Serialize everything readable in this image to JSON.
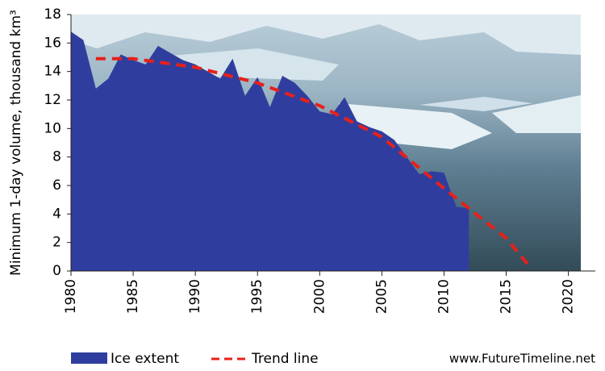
{
  "chart_data": {
    "type": "area",
    "y_label": "Minimum 1-day volume, thousand km³",
    "source": "www.FutureTimeline.net",
    "xlim": [
      1980,
      2021
    ],
    "xticks": [
      1980,
      1985,
      1990,
      1995,
      2000,
      2005,
      2010,
      2015,
      2020
    ],
    "ylim": [
      0,
      18
    ],
    "yticks": [
      0,
      2,
      4,
      6,
      8,
      10,
      12,
      14,
      16,
      18
    ],
    "series": [
      {
        "name": "Ice extent",
        "type": "area",
        "color": "#2f3e9e",
        "x": [
          1980,
          1981,
          1982,
          1983,
          1984,
          1985,
          1986,
          1987,
          1988,
          1989,
          1990,
          1991,
          1992,
          1993,
          1994,
          1995,
          1996,
          1997,
          1998,
          1999,
          2000,
          2001,
          2002,
          2003,
          2004,
          2005,
          2006,
          2007,
          2008,
          2009,
          2010,
          2011,
          2012
        ],
        "values": [
          16.8,
          16.2,
          12.8,
          13.5,
          15.2,
          14.8,
          14.5,
          15.8,
          15.3,
          14.8,
          14.5,
          14.0,
          13.5,
          14.9,
          12.3,
          13.6,
          11.5,
          13.7,
          13.2,
          12.3,
          11.2,
          11.0,
          12.2,
          10.5,
          10.1,
          9.8,
          9.2,
          8.0,
          6.8,
          7.0,
          6.9,
          4.5,
          4.4
        ]
      },
      {
        "name": "Trend line",
        "type": "line",
        "color": "#e8201a",
        "x": [
          1982,
          1985,
          1990,
          1995,
          2000,
          2005,
          2010,
          2015,
          2017
        ],
        "values": [
          14.9,
          14.9,
          14.3,
          13.2,
          11.6,
          9.4,
          5.8,
          2.3,
          0.2
        ]
      }
    ]
  }
}
